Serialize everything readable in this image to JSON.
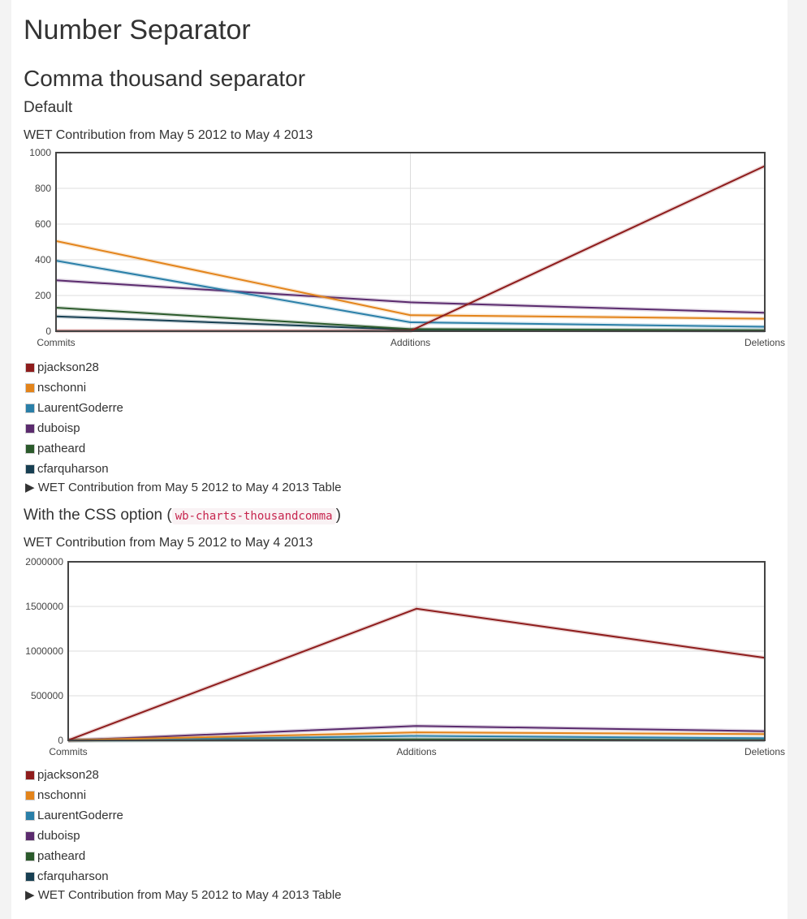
{
  "page": {
    "title": "Number Separator",
    "section_title": "Comma thousand separator",
    "sub1": "Default",
    "sub2_prefix": "With the CSS option (",
    "sub2_code": "wb-charts-thousandcomma",
    "sub2_suffix": ")"
  },
  "colors": {
    "pjackson28": "#8e1c1c",
    "nschonni": "#e3841b",
    "LaurentGoderre": "#2a7fa8",
    "duboisp": "#5b2b6e",
    "patheard": "#2b5a2b",
    "cfarquharson": "#173f52"
  },
  "chart_data": [
    {
      "type": "line",
      "title": "WET Contribution from May 5 2012 to May 4 2013",
      "categories": [
        "Commits",
        "Additions",
        "Deletions"
      ],
      "ylim": [
        0,
        1000
      ],
      "yticks": [
        "0",
        "200",
        "400",
        "600",
        "800",
        "1000"
      ],
      "grid": true,
      "legend_placement": "below",
      "summary": "WET Contribution from May 5 2012 to May 4 2013 Table",
      "series": [
        {
          "name": "pjackson28",
          "color": "#8e1c1c",
          "values": [
            2,
            2,
            925
          ]
        },
        {
          "name": "nschonni",
          "color": "#e3841b",
          "values": [
            505,
            90,
            70
          ]
        },
        {
          "name": "LaurentGoderre",
          "color": "#2a7fa8",
          "values": [
            395,
            50,
            25
          ]
        },
        {
          "name": "duboisp",
          "color": "#5b2b6e",
          "values": [
            285,
            162,
            103
          ]
        },
        {
          "name": "patheard",
          "color": "#2b5a2b",
          "values": [
            132,
            12,
            5
          ]
        },
        {
          "name": "cfarquharson",
          "color": "#173f52",
          "values": [
            83,
            8,
            3
          ]
        }
      ]
    },
    {
      "type": "line",
      "title": "WET Contribution from May 5 2012 to May 4 2013",
      "categories": [
        "Commits",
        "Additions",
        "Deletions"
      ],
      "ylim": [
        0,
        2000000
      ],
      "yticks": [
        "0",
        "500000",
        "1000000",
        "1500000",
        "2000000"
      ],
      "grid": true,
      "legend_placement": "below",
      "summary": "WET Contribution from May 5 2012 to May 4 2013 Table",
      "series": [
        {
          "name": "pjackson28",
          "color": "#8e1c1c",
          "values": [
            2000,
            1475000,
            925000
          ]
        },
        {
          "name": "nschonni",
          "color": "#e3841b",
          "values": [
            500,
            90000,
            70000
          ]
        },
        {
          "name": "LaurentGoderre",
          "color": "#2a7fa8",
          "values": [
            400,
            50000,
            25000
          ]
        },
        {
          "name": "duboisp",
          "color": "#5b2b6e",
          "values": [
            300,
            162000,
            103000
          ]
        },
        {
          "name": "patheard",
          "color": "#2b5a2b",
          "values": [
            130,
            12000,
            5000
          ]
        },
        {
          "name": "cfarquharson",
          "color": "#173f52",
          "values": [
            80,
            8000,
            3000
          ]
        }
      ]
    }
  ]
}
